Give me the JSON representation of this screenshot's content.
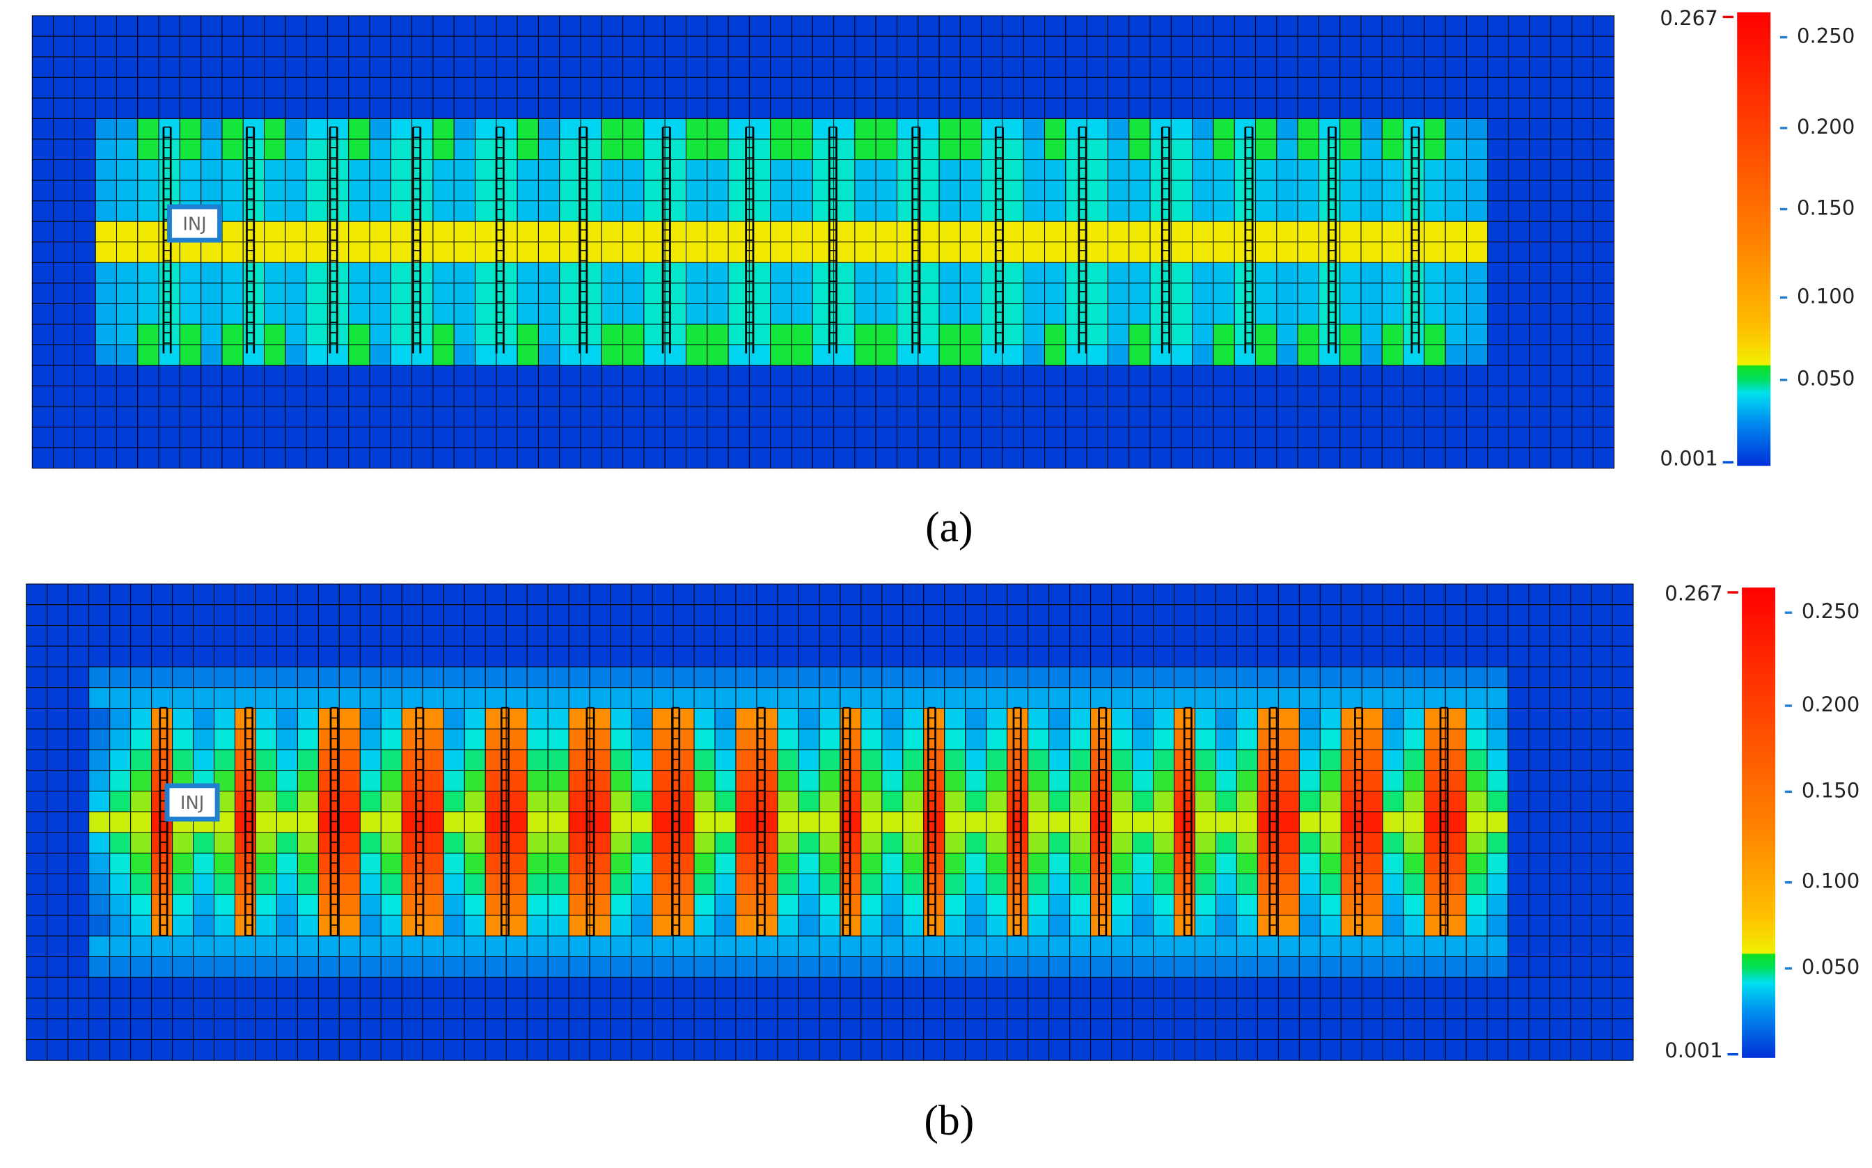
{
  "panels": [
    {
      "label": "(a)",
      "well_label": "INJ",
      "colorbar": {
        "max_label": "0.267",
        "min_label": "0.001",
        "ticks": [
          "0.250",
          "0.200",
          "0.150",
          "0.100",
          "0.050"
        ]
      }
    },
    {
      "label": "(b)",
      "well_label": "INJ",
      "colorbar": {
        "max_label": "0.267",
        "min_label": "0.001",
        "ticks": [
          "0.250",
          "0.200",
          "0.150",
          "0.100",
          "0.050"
        ]
      }
    }
  ]
}
